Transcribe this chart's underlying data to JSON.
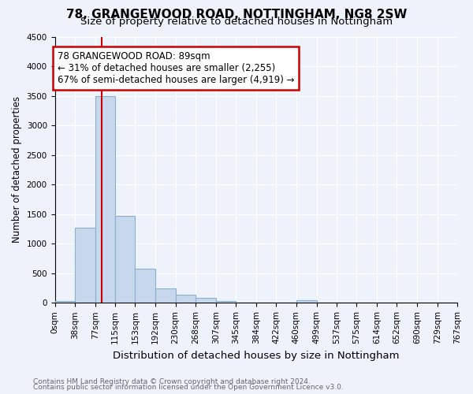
{
  "title": "78, GRANGEWOOD ROAD, NOTTINGHAM, NG8 2SW",
  "subtitle": "Size of property relative to detached houses in Nottingham",
  "xlabel": "Distribution of detached houses by size in Nottingham",
  "ylabel": "Number of detached properties",
  "footnote1": "Contains HM Land Registry data © Crown copyright and database right 2024.",
  "footnote2": "Contains public sector information licensed under the Open Government Licence v3.0.",
  "bins": [
    0,
    38,
    77,
    115,
    153,
    192,
    230,
    268,
    307,
    345,
    384,
    422,
    460,
    499,
    537,
    575,
    614,
    652,
    690,
    729,
    767
  ],
  "bin_labels": [
    "0sqm",
    "38sqm",
    "77sqm",
    "115sqm",
    "153sqm",
    "192sqm",
    "230sqm",
    "268sqm",
    "307sqm",
    "345sqm",
    "384sqm",
    "422sqm",
    "460sqm",
    "499sqm",
    "537sqm",
    "575sqm",
    "614sqm",
    "652sqm",
    "690sqm",
    "729sqm",
    "767sqm"
  ],
  "values": [
    30,
    1275,
    3500,
    1475,
    575,
    250,
    140,
    80,
    30,
    10,
    5,
    2,
    50,
    0,
    0,
    0,
    0,
    0,
    0,
    0
  ],
  "bar_color": "#c8d8ec",
  "bar_edgecolor": "#8ab0d0",
  "property_line_x": 89,
  "property_line_color": "#cc0000",
  "annotation_text": "78 GRANGEWOOD ROAD: 89sqm\n← 31% of detached houses are smaller (2,255)\n67% of semi-detached houses are larger (4,919) →",
  "annotation_box_color": "#ffffff",
  "annotation_box_edgecolor": "#cc0000",
  "ylim": [
    0,
    4500
  ],
  "xlim": [
    0,
    767
  ],
  "background_color": "#eef2fa",
  "axes_background": "#eef2fa",
  "grid_color": "#ffffff",
  "title_fontsize": 11,
  "subtitle_fontsize": 9.5,
  "xlabel_fontsize": 9.5,
  "ylabel_fontsize": 8.5,
  "tick_fontsize": 7.5,
  "footnote_fontsize": 6.5,
  "annotation_fontsize": 8.5
}
